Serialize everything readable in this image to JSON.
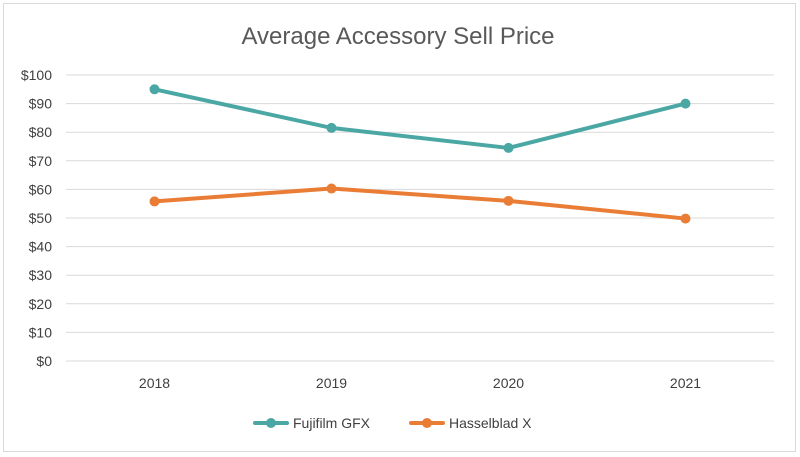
{
  "chart_data": {
    "type": "line",
    "title": "Average Accessory Sell Price",
    "categories": [
      "2018",
      "2019",
      "2020",
      "2021"
    ],
    "y_ticks": [
      "$0",
      "$10",
      "$20",
      "$30",
      "$40",
      "$50",
      "$60",
      "$70",
      "$80",
      "$90",
      "$100"
    ],
    "ylim": [
      0,
      100
    ],
    "grid": true,
    "legend_position": "bottom",
    "series": [
      {
        "name": "Fujifilm GFX",
        "values": [
          95,
          81.5,
          74.5,
          90
        ],
        "color": "#4aa7a4"
      },
      {
        "name": "Hasselblad X",
        "values": [
          55.8,
          60.3,
          56,
          49.8
        ],
        "color": "#ea7d35"
      }
    ]
  }
}
